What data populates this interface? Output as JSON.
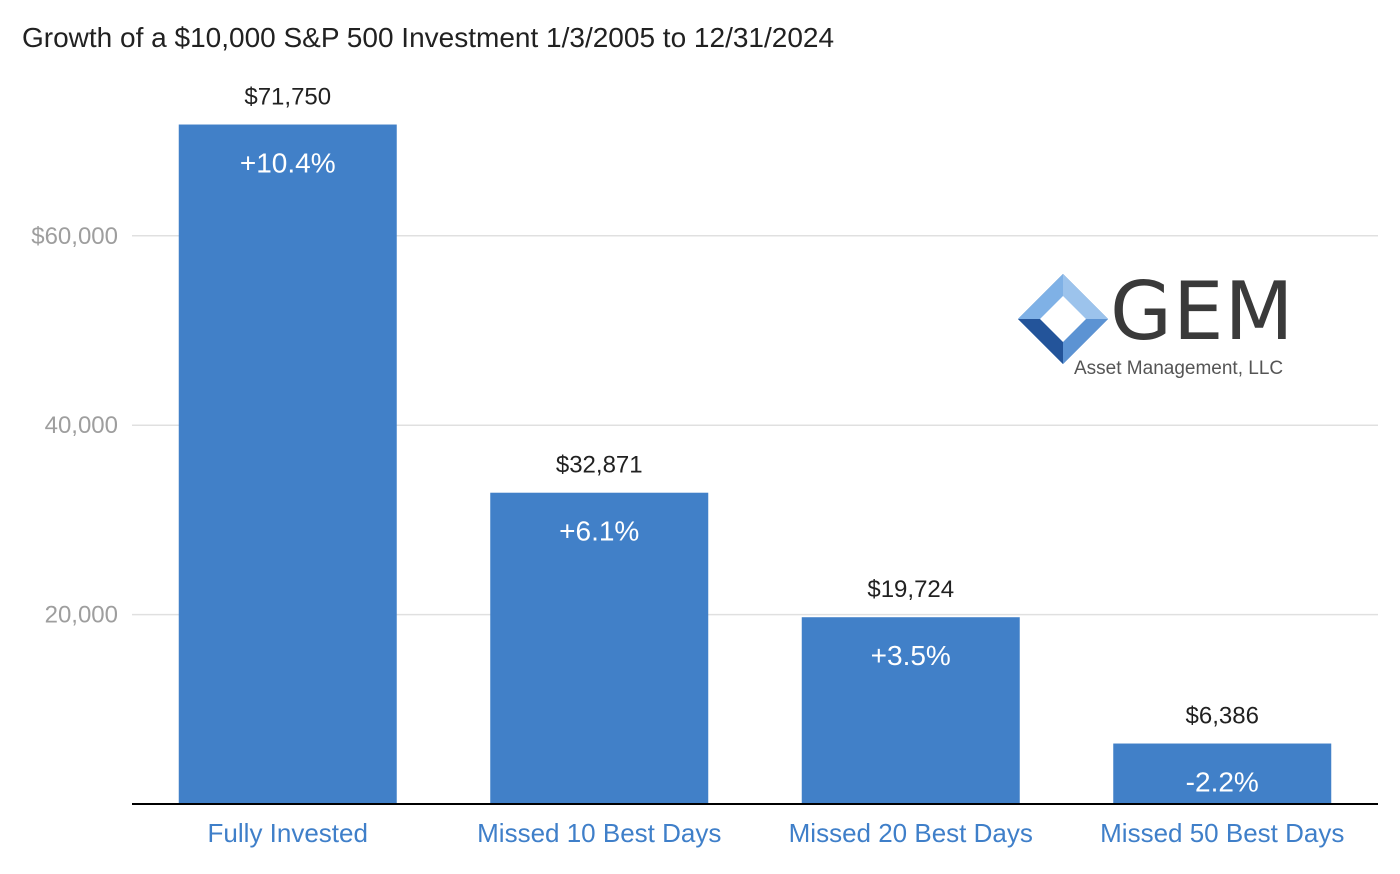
{
  "chart_data": {
    "type": "bar",
    "title": "Growth of a $10,000 S&P 500 Investment 1/3/2005 to 12/31/2024",
    "categories": [
      "Fully Invested",
      "Missed 10 Best Days",
      "Missed 20 Best Days",
      "Missed 50 Best Days"
    ],
    "values": [
      71750,
      32871,
      19724,
      6386
    ],
    "value_labels": [
      "$71,750",
      "$32,871",
      "$19,724",
      "$6,386"
    ],
    "inner_labels": [
      "+10.4%",
      "+6.1%",
      "+3.5%",
      "-2.2%"
    ],
    "yticks": [
      20000,
      40000,
      60000
    ],
    "ytick_labels": [
      "20,000",
      "40,000",
      "$60,000"
    ],
    "ylim": [
      0,
      80000
    ],
    "xlabel": "",
    "ylabel": "",
    "grid": true,
    "legend": "none",
    "colors": {
      "bar": "#4180c8",
      "category_text": "#3f7fc9",
      "grid": "#e0e0e0",
      "axis": "#000000",
      "tick_text": "#9e9e9e"
    }
  },
  "logo": {
    "name": "GEM",
    "subtitle": "Asset Management, LLC"
  }
}
